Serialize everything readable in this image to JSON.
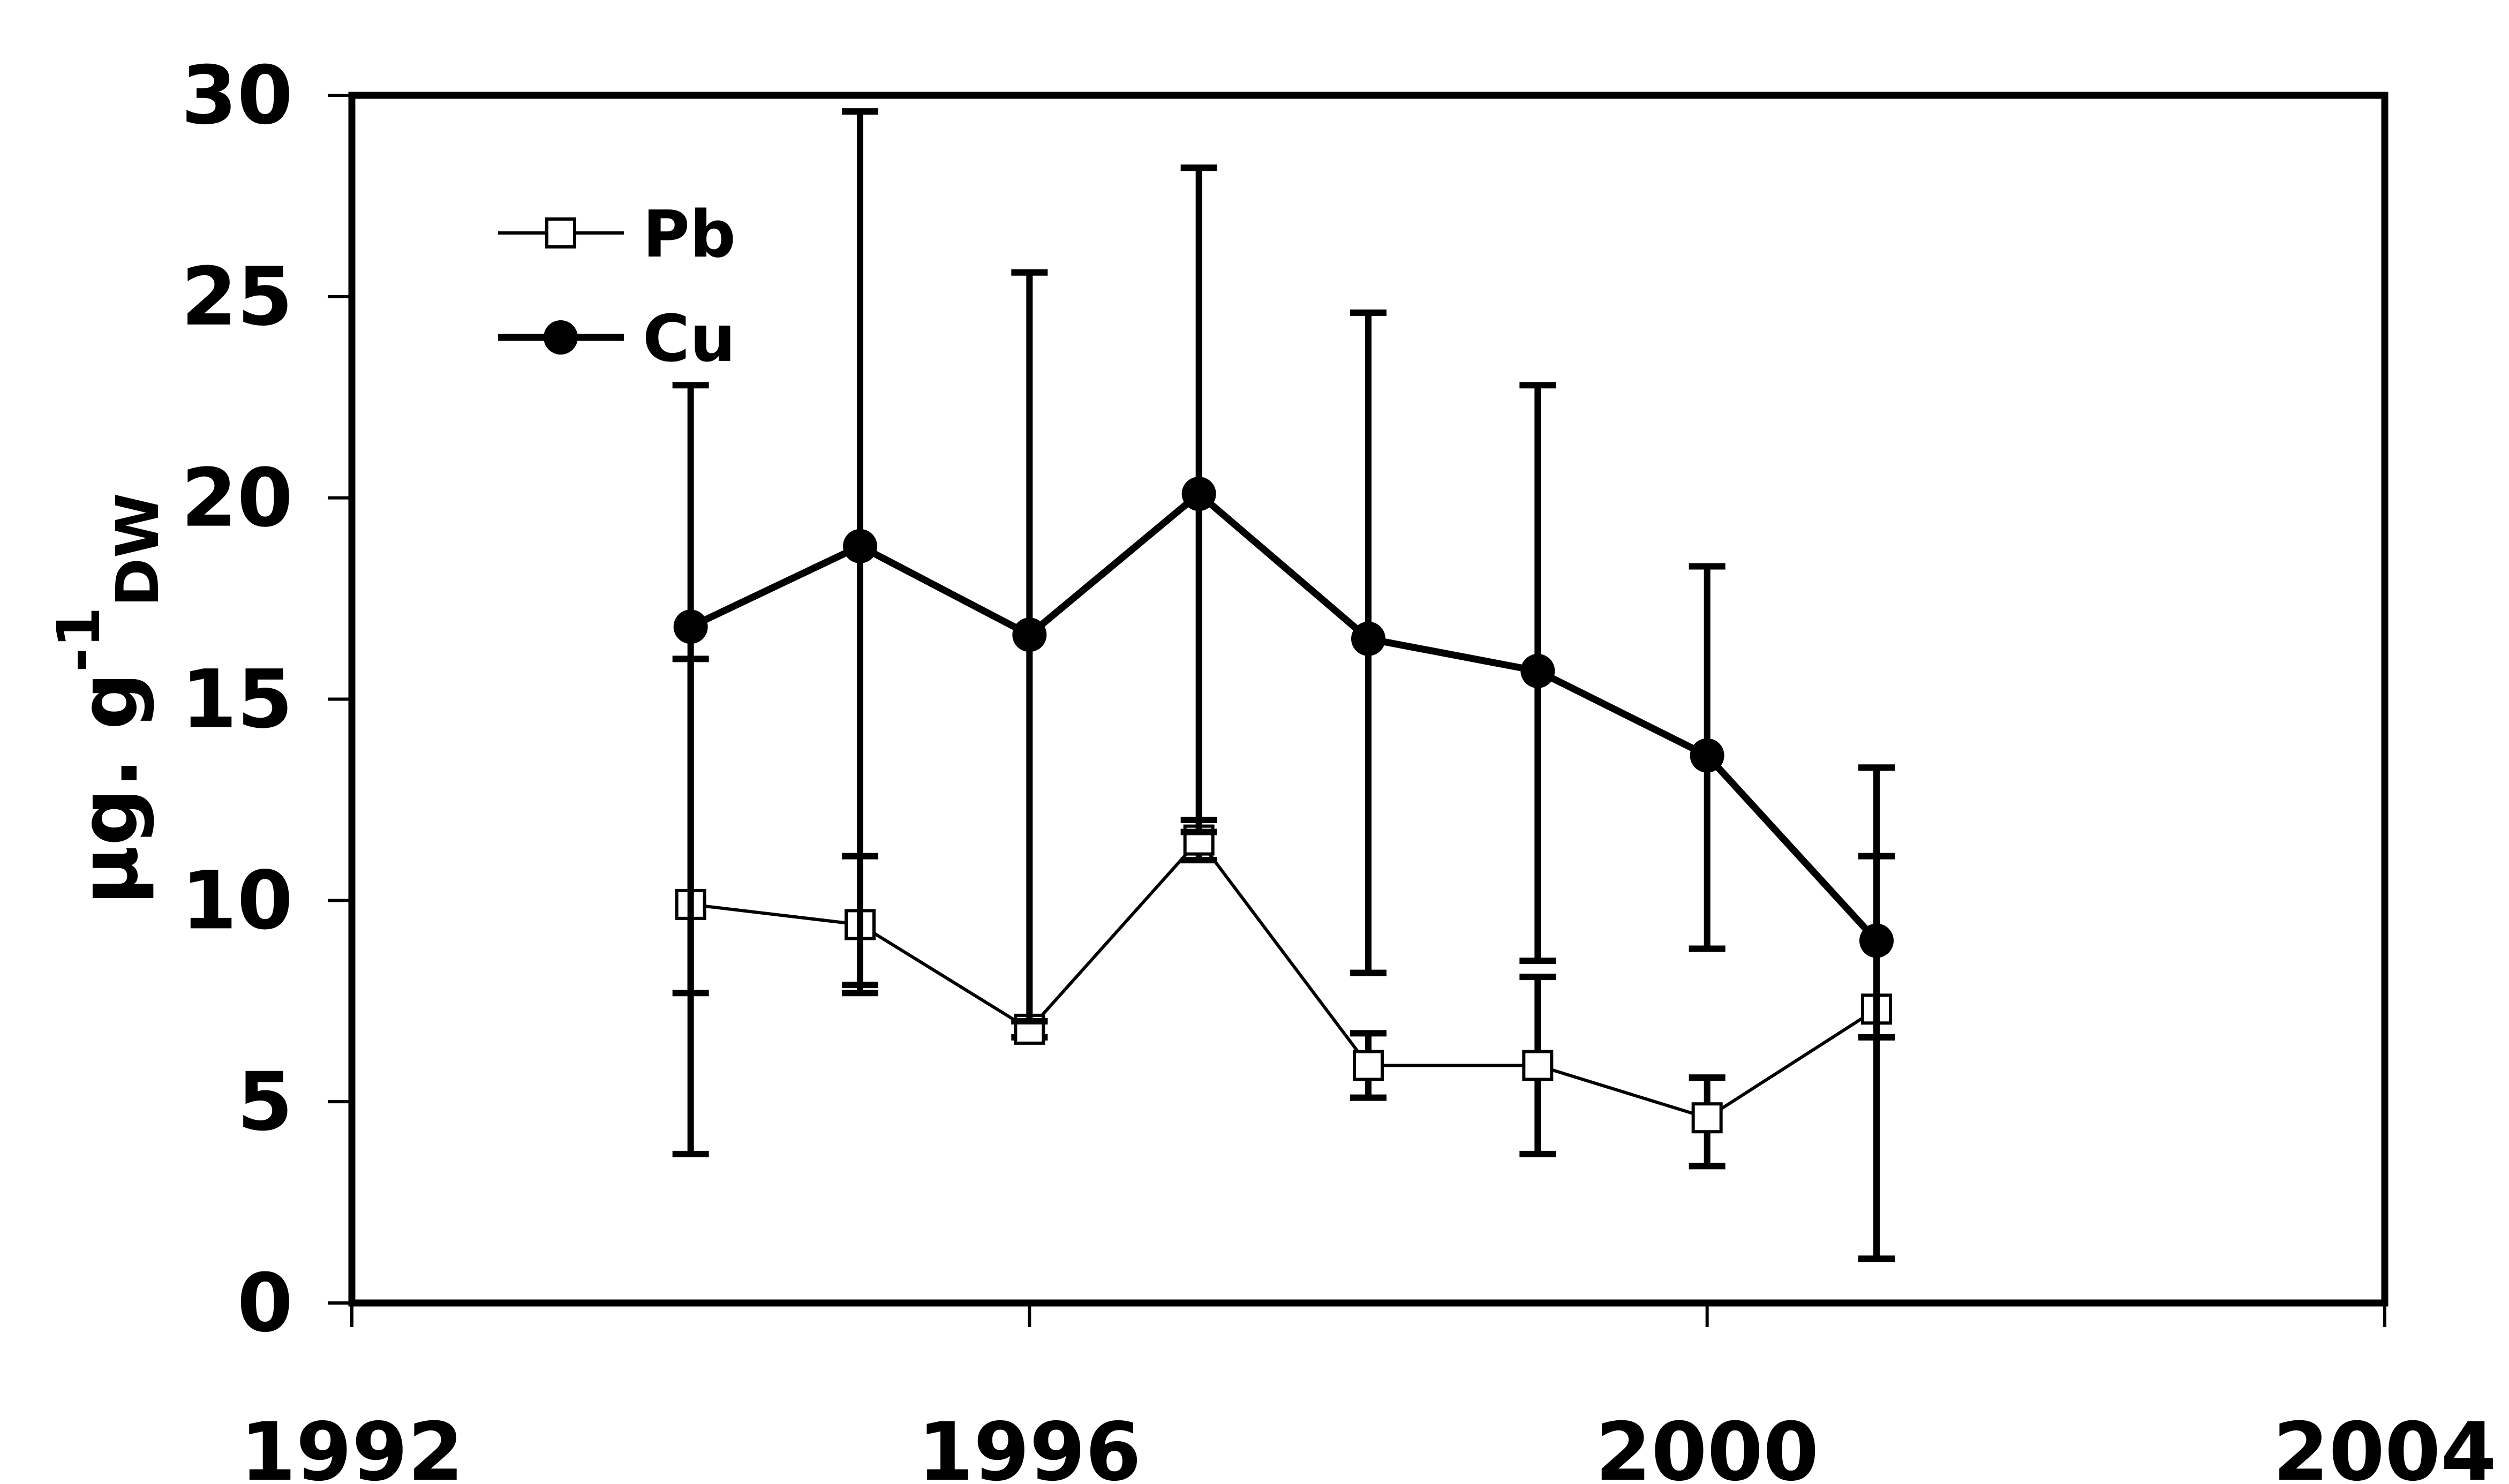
{
  "chart_data": {
    "type": "line",
    "xlabel": "",
    "ylabel": {
      "main": "µg. g",
      "sup": "-1",
      "sub": "DW"
    },
    "xlim": [
      1992,
      2004
    ],
    "ylim": [
      0,
      30
    ],
    "xticks": [
      1992,
      1996,
      2000,
      2004
    ],
    "yticks": [
      0,
      5,
      10,
      15,
      20,
      25,
      30
    ],
    "grid": false,
    "legend_position": "top-left",
    "series": [
      {
        "name": "Pb",
        "marker": "open-square",
        "line": "thin",
        "color": "#000000",
        "x": [
          1994,
          1995,
          1996,
          1997,
          1998,
          1999,
          2000,
          2001
        ],
        "y": [
          9.9,
          9.4,
          6.8,
          11.5,
          5.9,
          5.9,
          4.6,
          7.3
        ],
        "err_low": [
          7.7,
          7.7,
          6.6,
          11.0,
          5.1,
          3.7,
          3.4,
          6.6
        ],
        "err_high": [
          16.0,
          11.1,
          7.0,
          12.0,
          6.7,
          8.1,
          5.6,
          11.1
        ]
      },
      {
        "name": "Cu",
        "marker": "filled-circle",
        "line": "thick",
        "color": "#000000",
        "x": [
          1994,
          1995,
          1996,
          1997,
          1998,
          1999,
          2000,
          2001
        ],
        "y": [
          16.8,
          18.8,
          16.6,
          20.1,
          16.5,
          15.7,
          13.6,
          9.0
        ],
        "err_low": [
          3.7,
          7.9,
          7.0,
          11.7,
          8.2,
          8.5,
          8.8,
          1.1
        ],
        "err_high": [
          22.8,
          29.6,
          25.6,
          28.2,
          24.6,
          22.8,
          18.3,
          13.3
        ]
      }
    ]
  }
}
